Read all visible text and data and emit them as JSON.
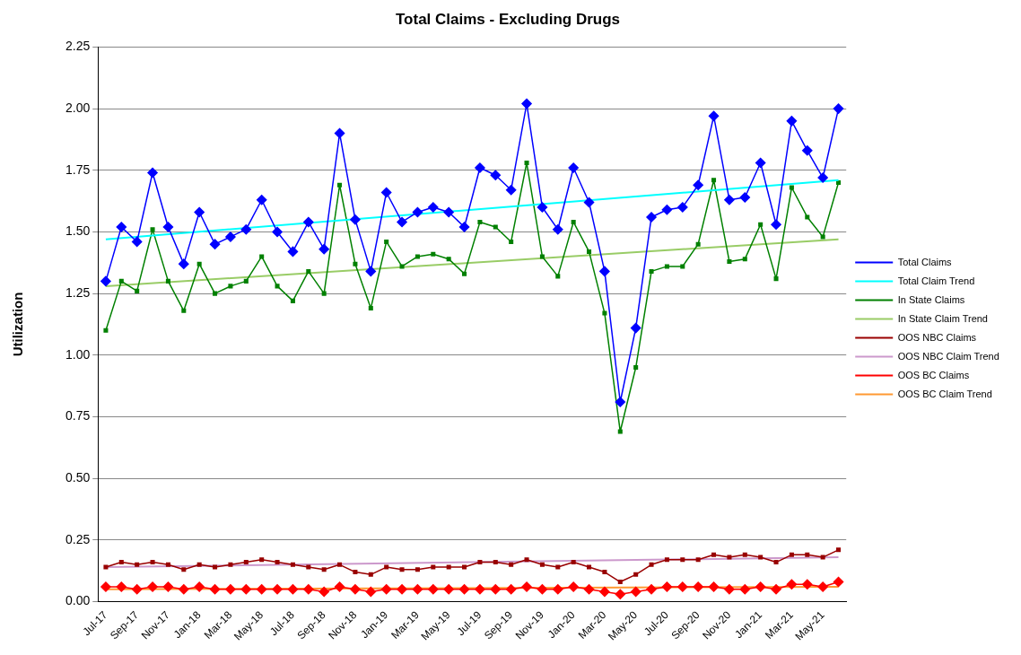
{
  "chart_data": {
    "type": "line",
    "title": "Total Claims - Excluding Drugs",
    "ylabel": "Utilization",
    "categories": [
      "Jul-17",
      null,
      "Sep-17",
      null,
      "Nov-17",
      null,
      "Jan-18",
      null,
      "Mar-18",
      null,
      "May-18",
      null,
      "Jul-18",
      null,
      "Sep-18",
      null,
      "Nov-18",
      null,
      "Jan-19",
      null,
      "Mar-19",
      null,
      "May-19",
      null,
      "Jul-19",
      null,
      "Sep-19",
      null,
      "Nov-19",
      null,
      "Jan-20",
      null,
      "Mar-20",
      null,
      "May-20",
      null,
      "Jul-20",
      null,
      "Sep-20",
      null,
      "Nov-20",
      null,
      "Jan-21",
      null,
      "Mar-21",
      null,
      "May-21",
      null
    ],
    "series": [
      {
        "name": "Total Claims",
        "color": "#0000ff",
        "marker": "diamond",
        "values": [
          1.3,
          1.52,
          1.46,
          1.74,
          1.52,
          1.37,
          1.58,
          1.45,
          1.48,
          1.51,
          1.63,
          1.5,
          1.42,
          1.54,
          1.43,
          1.9,
          1.55,
          1.34,
          1.66,
          1.54,
          1.58,
          1.6,
          1.58,
          1.52,
          1.76,
          1.73,
          1.67,
          2.02,
          1.6,
          1.51,
          1.76,
          1.62,
          1.34,
          0.81,
          1.11,
          1.56,
          1.59,
          1.6,
          1.69,
          1.97,
          1.63,
          1.64,
          1.78,
          1.53,
          1.95,
          1.83,
          1.72,
          2.0
        ]
      },
      {
        "name": "Total Claim Trend",
        "color": "#00ffff",
        "marker": "none",
        "values": [
          1.47,
          null,
          null,
          null,
          null,
          null,
          null,
          null,
          null,
          null,
          null,
          null,
          null,
          null,
          null,
          null,
          null,
          null,
          null,
          null,
          null,
          null,
          null,
          null,
          null,
          null,
          null,
          null,
          null,
          null,
          null,
          null,
          null,
          null,
          null,
          null,
          null,
          null,
          null,
          null,
          null,
          null,
          null,
          null,
          null,
          null,
          null,
          1.71
        ]
      },
      {
        "name": "In State Claims",
        "color": "#008000",
        "marker": "square",
        "values": [
          1.1,
          1.3,
          1.26,
          1.51,
          1.3,
          1.18,
          1.37,
          1.25,
          1.28,
          1.3,
          1.4,
          1.28,
          1.22,
          1.34,
          1.25,
          1.69,
          1.37,
          1.19,
          1.46,
          1.36,
          1.4,
          1.41,
          1.39,
          1.33,
          1.54,
          1.52,
          1.46,
          1.78,
          1.4,
          1.32,
          1.54,
          1.42,
          1.17,
          0.69,
          0.95,
          1.34,
          1.36,
          1.36,
          1.45,
          1.71,
          1.38,
          1.39,
          1.53,
          1.31,
          1.68,
          1.56,
          1.48,
          1.7
        ]
      },
      {
        "name": "In State Claim Trend",
        "color": "#99cc66",
        "marker": "none",
        "values": [
          1.28,
          null,
          null,
          null,
          null,
          null,
          null,
          null,
          null,
          null,
          null,
          null,
          null,
          null,
          null,
          null,
          null,
          null,
          null,
          null,
          null,
          null,
          null,
          null,
          null,
          null,
          null,
          null,
          null,
          null,
          null,
          null,
          null,
          null,
          null,
          null,
          null,
          null,
          null,
          null,
          null,
          null,
          null,
          null,
          null,
          null,
          null,
          1.47
        ]
      },
      {
        "name": "OOS NBC Claims",
        "color": "#990000",
        "marker": "square",
        "values": [
          0.14,
          0.16,
          0.15,
          0.16,
          0.15,
          0.13,
          0.15,
          0.14,
          0.15,
          0.16,
          0.17,
          0.16,
          0.15,
          0.14,
          0.13,
          0.15,
          0.12,
          0.11,
          0.14,
          0.13,
          0.13,
          0.14,
          0.14,
          0.14,
          0.16,
          0.16,
          0.15,
          0.17,
          0.15,
          0.14,
          0.16,
          0.14,
          0.12,
          0.08,
          0.11,
          0.15,
          0.17,
          0.17,
          0.17,
          0.19,
          0.18,
          0.19,
          0.18,
          0.16,
          0.19,
          0.19,
          0.18,
          0.21
        ]
      },
      {
        "name": "OOS NBC Claim Trend",
        "color": "#cc99cc",
        "marker": "none",
        "values": [
          0.14,
          null,
          null,
          null,
          null,
          null,
          null,
          null,
          null,
          null,
          null,
          null,
          null,
          null,
          null,
          null,
          null,
          null,
          null,
          null,
          null,
          null,
          null,
          null,
          null,
          null,
          null,
          null,
          null,
          null,
          null,
          null,
          null,
          null,
          null,
          null,
          null,
          null,
          null,
          null,
          null,
          null,
          null,
          null,
          null,
          null,
          null,
          0.18
        ]
      },
      {
        "name": "OOS BC Claims",
        "color": "#ff0000",
        "marker": "diamond",
        "values": [
          0.06,
          0.06,
          0.05,
          0.06,
          0.06,
          0.05,
          0.06,
          0.05,
          0.05,
          0.05,
          0.05,
          0.05,
          0.05,
          0.05,
          0.04,
          0.06,
          0.05,
          0.04,
          0.05,
          0.05,
          0.05,
          0.05,
          0.05,
          0.05,
          0.05,
          0.05,
          0.05,
          0.06,
          0.05,
          0.05,
          0.06,
          0.05,
          0.04,
          0.03,
          0.04,
          0.05,
          0.06,
          0.06,
          0.06,
          0.06,
          0.05,
          0.05,
          0.06,
          0.05,
          0.07,
          0.07,
          0.06,
          0.08
        ]
      },
      {
        "name": "OOS BC Claim Trend",
        "color": "#ff9933",
        "marker": "none",
        "values": [
          0.05,
          null,
          null,
          null,
          null,
          null,
          null,
          null,
          null,
          null,
          null,
          null,
          null,
          null,
          null,
          null,
          null,
          null,
          null,
          null,
          null,
          null,
          null,
          null,
          null,
          null,
          null,
          null,
          null,
          null,
          null,
          null,
          null,
          null,
          null,
          null,
          null,
          null,
          null,
          null,
          null,
          null,
          null,
          null,
          null,
          null,
          null,
          0.06
        ]
      }
    ],
    "ylim": [
      0,
      2.25
    ],
    "yticks": [
      {
        "value": 0,
        "label": "0.00"
      },
      {
        "value": 0.25,
        "label": "0.25"
      },
      {
        "value": 0.5,
        "label": "0.50"
      },
      {
        "value": 0.75,
        "label": "0.75"
      },
      {
        "value": 1,
        "label": "1.00"
      },
      {
        "value": 1.25,
        "label": "1.25"
      },
      {
        "value": 1.5,
        "label": "1.50"
      },
      {
        "value": 1.75,
        "label": "1.75"
      },
      {
        "value": 2,
        "label": "2.00"
      },
      {
        "value": 2.25,
        "label": "2.25"
      }
    ],
    "grid": "y",
    "legend": "right",
    "line_style": "solid"
  }
}
